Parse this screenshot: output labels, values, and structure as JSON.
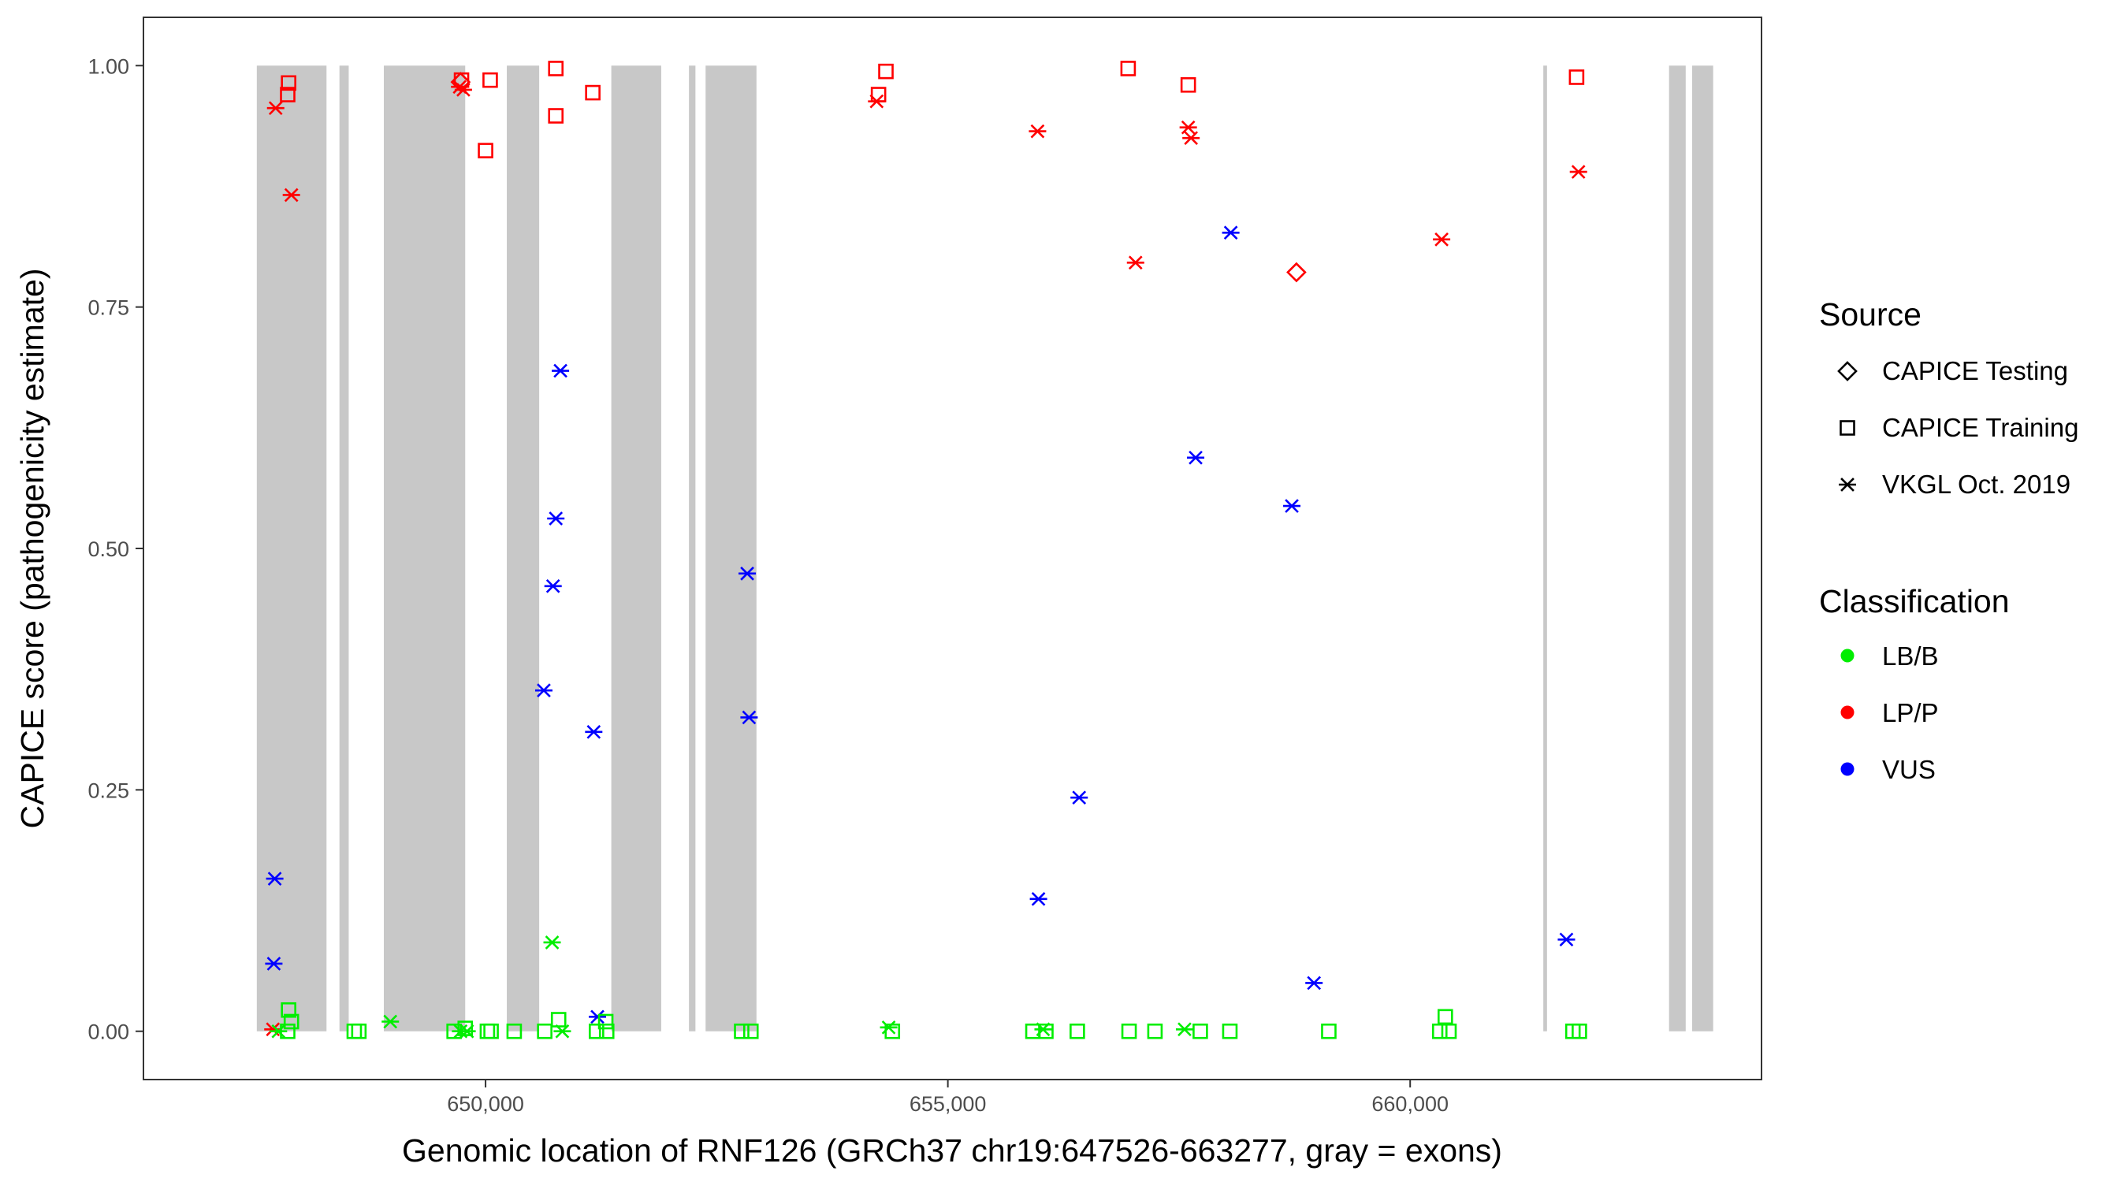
{
  "chart_data": {
    "type": "scatter",
    "xlabel": "Genomic location of RNF126 (GRCh37 chr19:647526-663277, gray = exons)",
    "ylabel": "CAPICE score (pathogenicity estimate)",
    "xlim": [
      646300,
      663800
    ],
    "ylim": [
      -0.05,
      1.05
    ],
    "x_ticks": [
      650000,
      655000,
      660000
    ],
    "x_tick_labels": [
      "650,000",
      "655,000",
      "660,000"
    ],
    "y_ticks": [
      0,
      0.25,
      0.5,
      0.75,
      1.0
    ],
    "y_tick_labels": [
      "0.00",
      "0.25",
      "0.50",
      "0.75",
      "1.00"
    ],
    "grid": false,
    "legend_position": "right",
    "exon_color": "#c8c8c8",
    "exons": [
      [
        647526,
        648280
      ],
      [
        648420,
        648520
      ],
      [
        648900,
        649780
      ],
      [
        650230,
        650580
      ],
      [
        651360,
        651900
      ],
      [
        652200,
        652270
      ],
      [
        652380,
        652930
      ],
      [
        661440,
        661480
      ],
      [
        662800,
        662980
      ],
      [
        663050,
        663277
      ]
    ],
    "legends": {
      "source": {
        "title": "Source",
        "items": [
          {
            "label": "CAPICE Testing",
            "shape": "diamond"
          },
          {
            "label": "CAPICE Training",
            "shape": "square"
          },
          {
            "label": "VKGL Oct. 2019",
            "shape": "asterisk"
          }
        ]
      },
      "classification": {
        "title": "Classification",
        "items": [
          {
            "label": "LB/B",
            "color": "#00ee00"
          },
          {
            "label": "LP/P",
            "color": "#ff0000"
          },
          {
            "label": "VUS",
            "color": "#0000ff"
          }
        ]
      }
    },
    "series": [
      {
        "source": "CAPICE Training",
        "classification": "LP/P",
        "shape": "square",
        "color": "#ff0000",
        "points": [
          [
            647870,
            0.982
          ],
          [
            647860,
            0.97
          ],
          [
            649740,
            0.985
          ],
          [
            650050,
            0.985
          ],
          [
            650000,
            0.912
          ],
          [
            650760,
            0.997
          ],
          [
            650760,
            0.948
          ],
          [
            651160,
            0.972
          ],
          [
            654250,
            0.97
          ],
          [
            654330,
            0.994
          ],
          [
            656950,
            0.997
          ],
          [
            657600,
            0.98
          ],
          [
            661800,
            0.988
          ]
        ]
      },
      {
        "source": "VKGL Oct. 2019",
        "classification": "LP/P",
        "shape": "asterisk",
        "color": "#ff0000",
        "points": [
          [
            647730,
            0.956
          ],
          [
            647900,
            0.866
          ],
          [
            649760,
            0.975
          ],
          [
            649720,
            0.978
          ],
          [
            654230,
            0.963
          ],
          [
            655970,
            0.932
          ],
          [
            657030,
            0.796
          ],
          [
            657600,
            0.936
          ],
          [
            657630,
            0.925
          ],
          [
            660340,
            0.82
          ],
          [
            661820,
            0.89
          ],
          [
            647700,
            0.002
          ]
        ]
      },
      {
        "source": "CAPICE Testing",
        "classification": "LP/P",
        "shape": "diamond",
        "color": "#ff0000",
        "points": [
          [
            649730,
            0.983
          ],
          [
            658770,
            0.786
          ]
        ]
      },
      {
        "source": "VKGL Oct. 2019",
        "classification": "VUS",
        "shape": "asterisk",
        "color": "#0000ff",
        "points": [
          [
            647720,
            0.158
          ],
          [
            647710,
            0.07
          ],
          [
            650810,
            0.684
          ],
          [
            650760,
            0.531
          ],
          [
            650730,
            0.461
          ],
          [
            650630,
            0.353
          ],
          [
            651170,
            0.31
          ],
          [
            651210,
            0.015
          ],
          [
            652830,
            0.474
          ],
          [
            652850,
            0.325
          ],
          [
            655980,
            0.137
          ],
          [
            656420,
            0.242
          ],
          [
            657680,
            0.594
          ],
          [
            658060,
            0.827
          ],
          [
            658720,
            0.544
          ],
          [
            658960,
            0.05
          ],
          [
            661690,
            0.095
          ]
        ]
      },
      {
        "source": "CAPICE Training",
        "classification": "LB/B",
        "shape": "square",
        "color": "#00ee00",
        "points": [
          [
            647870,
            0.022
          ],
          [
            647900,
            0.01
          ],
          [
            647860,
            0.0
          ],
          [
            648580,
            0.0
          ],
          [
            648630,
            0.0
          ],
          [
            649660,
            0.0
          ],
          [
            649780,
            0.003
          ],
          [
            650020,
            0.0
          ],
          [
            650060,
            0.0
          ],
          [
            650310,
            0.0
          ],
          [
            650640,
            0.0
          ],
          [
            650790,
            0.012
          ],
          [
            651200,
            0.0
          ],
          [
            651300,
            0.01
          ],
          [
            651310,
            0.0
          ],
          [
            652770,
            0.0
          ],
          [
            652870,
            0.0
          ],
          [
            654400,
            0.0
          ],
          [
            655920,
            0.0
          ],
          [
            656060,
            0.0
          ],
          [
            656400,
            0.0
          ],
          [
            656960,
            0.0
          ],
          [
            657240,
            0.0
          ],
          [
            657730,
            0.0
          ],
          [
            658050,
            0.0
          ],
          [
            659120,
            0.0
          ],
          [
            660320,
            0.0
          ],
          [
            660380,
            0.015
          ],
          [
            660420,
            0.0
          ],
          [
            661760,
            0.0
          ],
          [
            661830,
            0.0
          ]
        ]
      },
      {
        "source": "VKGL Oct. 2019",
        "classification": "LB/B",
        "shape": "asterisk",
        "color": "#00ee00",
        "points": [
          [
            647760,
            0.0
          ],
          [
            648970,
            0.01
          ],
          [
            649730,
            0.0
          ],
          [
            649800,
            0.0
          ],
          [
            650720,
            0.092
          ],
          [
            650830,
            0.0
          ],
          [
            654360,
            0.004
          ],
          [
            656030,
            0.002
          ],
          [
            657560,
            0.002
          ]
        ]
      }
    ]
  }
}
